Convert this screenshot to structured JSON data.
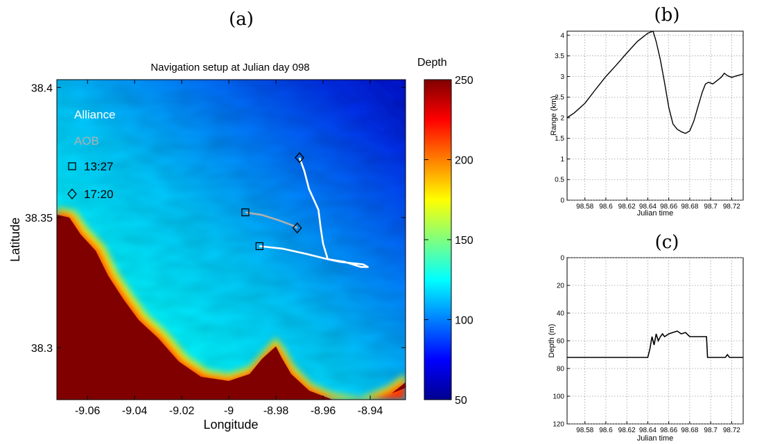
{
  "panels": {
    "a": "(a)",
    "b": "(b)",
    "c": "(c)"
  },
  "chart_data": [
    {
      "type": "heatmap",
      "title": "Navigation setup at Julian day 098",
      "xlabel": "Longitude",
      "ylabel": "Latitude",
      "xlim": [
        -9.073,
        -8.925
      ],
      "ylim": [
        38.28,
        38.403
      ],
      "x_ticks": [
        "-9.06",
        "-9.04",
        "-9.02",
        "-9",
        "-8.98",
        "-8.96",
        "-8.94"
      ],
      "x_tick_values": [
        -9.06,
        -9.04,
        -9.02,
        -9.0,
        -8.98,
        -8.96,
        -8.94
      ],
      "y_ticks": [
        "38.4",
        "38.35",
        "38.3"
      ],
      "y_tick_values": [
        38.4,
        38.35,
        38.3
      ],
      "colorbar": {
        "label": "Depth",
        "ticks": [
          "250",
          "200",
          "150",
          "100",
          "50"
        ],
        "tick_values": [
          250,
          200,
          150,
          100,
          50
        ],
        "range": [
          50,
          250
        ]
      },
      "legend": [
        {
          "label": "Alliance",
          "color": "#ffffff"
        },
        {
          "label": "AOB",
          "color": "#b0b0b0"
        },
        {
          "label": "13:27",
          "marker": "square"
        },
        {
          "label": "17:20",
          "marker": "diamond"
        }
      ],
      "series": [
        {
          "name": "Alliance",
          "color": "#ffffff",
          "points": [
            [
              -8.987,
              38.339
            ],
            [
              -8.977,
              38.338
            ],
            [
              -8.967,
              38.336
            ],
            [
              -8.958,
              38.334
            ],
            [
              -8.951,
              38.333
            ],
            [
              -8.944,
              38.331
            ],
            [
              -8.941,
              38.331
            ],
            [
              -8.943,
              38.332
            ],
            [
              -8.953,
              38.333
            ],
            [
              -8.958,
              38.334
            ],
            [
              -8.96,
              38.34
            ],
            [
              -8.961,
              38.346
            ],
            [
              -8.962,
              38.353
            ],
            [
              -8.966,
              38.361
            ],
            [
              -8.968,
              38.368
            ],
            [
              -8.97,
              38.373
            ]
          ],
          "start": [
            -8.987,
            38.339
          ],
          "end": [
            -8.97,
            38.373
          ]
        },
        {
          "name": "AOB",
          "color": "#b0b0b0",
          "points": [
            [
              -8.993,
              38.352
            ],
            [
              -8.986,
              38.351
            ],
            [
              -8.979,
              38.349
            ],
            [
              -8.973,
              38.347
            ],
            [
              -8.971,
              38.346
            ]
          ],
          "start": [
            -8.993,
            38.352
          ],
          "end": [
            -8.971,
            38.346
          ]
        }
      ]
    },
    {
      "type": "line",
      "xlabel": "Julian time",
      "ylabel": "Range (km)",
      "xlim": [
        98.563,
        98.731
      ],
      "ylim": [
        0,
        4.1
      ],
      "x_ticks": [
        "98.58",
        "98.6",
        "98.62",
        "98.64",
        "98.66",
        "98.68",
        "98.7",
        "98.72"
      ],
      "x_tick_values": [
        98.58,
        98.6,
        98.62,
        98.64,
        98.66,
        98.68,
        98.7,
        98.72
      ],
      "y_ticks": [
        "0",
        "0.5",
        "1",
        "1.5",
        "2",
        "2.5",
        "3",
        "3.5",
        "4"
      ],
      "y_tick_values": [
        0,
        0.5,
        1,
        1.5,
        2,
        2.5,
        3,
        3.5,
        4
      ],
      "grid": true,
      "x": [
        98.563,
        98.57,
        98.58,
        98.59,
        98.6,
        98.61,
        98.62,
        98.63,
        98.64,
        98.645,
        98.648,
        98.652,
        98.656,
        98.66,
        98.664,
        98.668,
        98.672,
        98.676,
        98.68,
        98.684,
        98.688,
        98.692,
        98.695,
        98.698,
        98.702,
        98.706,
        98.71,
        98.713,
        98.716,
        98.72,
        98.725,
        98.731
      ],
      "y": [
        2.0,
        2.12,
        2.35,
        2.68,
        3.0,
        3.28,
        3.57,
        3.85,
        4.05,
        4.1,
        3.85,
        3.4,
        2.85,
        2.25,
        1.85,
        1.72,
        1.66,
        1.62,
        1.68,
        1.92,
        2.28,
        2.62,
        2.82,
        2.86,
        2.82,
        2.9,
        2.98,
        3.08,
        3.02,
        2.98,
        3.02,
        3.06
      ]
    },
    {
      "type": "line",
      "xlabel": "Julian time",
      "ylabel": "Depth (m)",
      "xlim": [
        98.563,
        98.731
      ],
      "ylim": [
        120,
        0
      ],
      "x_ticks": [
        "98.58",
        "98.6",
        "98.62",
        "98.64",
        "98.66",
        "98.68",
        "98.7",
        "98.72"
      ],
      "x_tick_values": [
        98.58,
        98.6,
        98.62,
        98.64,
        98.66,
        98.68,
        98.7,
        98.72
      ],
      "y_ticks": [
        "0",
        "20",
        "40",
        "60",
        "80",
        "100",
        "120"
      ],
      "y_tick_values": [
        0,
        20,
        40,
        60,
        80,
        100,
        120
      ],
      "grid": true,
      "x": [
        98.563,
        98.6,
        98.64,
        98.642,
        98.644,
        98.646,
        98.648,
        98.65,
        98.652,
        98.654,
        98.656,
        98.66,
        98.664,
        98.668,
        98.672,
        98.676,
        98.68,
        98.685,
        98.69,
        98.694,
        98.696,
        98.697,
        98.7,
        98.714,
        98.716,
        98.718,
        98.72,
        98.731
      ],
      "y": [
        72,
        72,
        72,
        66,
        57,
        63,
        55,
        60,
        57,
        55,
        57,
        55,
        54,
        53,
        55,
        54,
        57,
        57,
        57,
        57,
        57,
        72,
        72,
        72,
        70,
        72,
        72,
        72
      ]
    }
  ]
}
